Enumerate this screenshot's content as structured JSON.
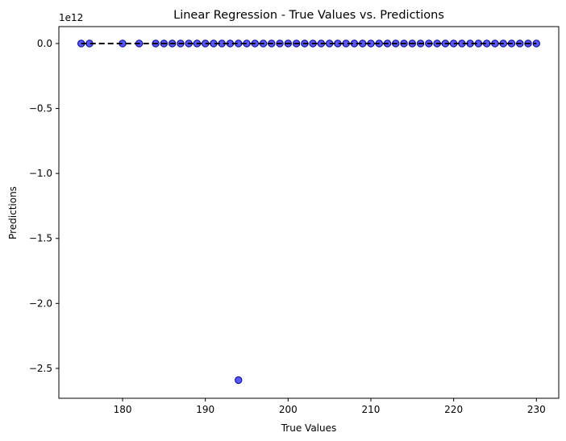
{
  "chart_data": {
    "type": "scatter",
    "title": "Linear Regression - True Values vs. Predictions",
    "xlabel": "True Values",
    "ylabel": "Predictions",
    "y_offset_label": "1e12",
    "xlim": [
      172.3,
      232.7
    ],
    "ylim": [
      -2.73,
      0.13
    ],
    "y_units_note": "1e12",
    "x_ticks": [
      180,
      190,
      200,
      210,
      220,
      230
    ],
    "x_tick_labels": [
      "180",
      "190",
      "200",
      "210",
      "220",
      "230"
    ],
    "y_ticks": [
      0.0,
      -0.5,
      -1.0,
      -1.5,
      -2.0,
      -2.5
    ],
    "y_tick_labels": [
      "0.0",
      "−0.5",
      "−1.0",
      "−1.5",
      "−2.0",
      "−2.5"
    ],
    "grid": false,
    "marker_color": "#0000ff",
    "marker_edge": "#00008b",
    "reference_line": {
      "style": "dashed",
      "color": "#000000",
      "x": [
        175,
        230
      ],
      "y": [
        0.0,
        0.0
      ]
    },
    "points": {
      "x": [
        175,
        176,
        180,
        182,
        184,
        185,
        186,
        187,
        188,
        189,
        190,
        191,
        192,
        193,
        194,
        195,
        196,
        197,
        198,
        199,
        200,
        201,
        202,
        203,
        204,
        205,
        206,
        207,
        208,
        209,
        210,
        211,
        212,
        213,
        214,
        215,
        216,
        217,
        218,
        219,
        220,
        221,
        222,
        223,
        224,
        225,
        226,
        227,
        228,
        229,
        230,
        194
      ],
      "y": [
        0,
        0,
        0,
        0,
        0,
        0,
        0,
        0,
        0,
        0,
        0,
        0,
        0,
        0,
        0,
        0,
        0,
        0,
        0,
        0,
        0,
        0,
        0,
        0,
        0,
        0,
        0,
        0,
        0,
        0,
        0,
        0,
        0,
        0,
        0,
        0,
        0,
        0,
        0,
        0,
        0,
        0,
        0,
        0,
        0,
        0,
        0,
        0,
        0,
        0,
        0,
        -2.59
      ]
    }
  }
}
